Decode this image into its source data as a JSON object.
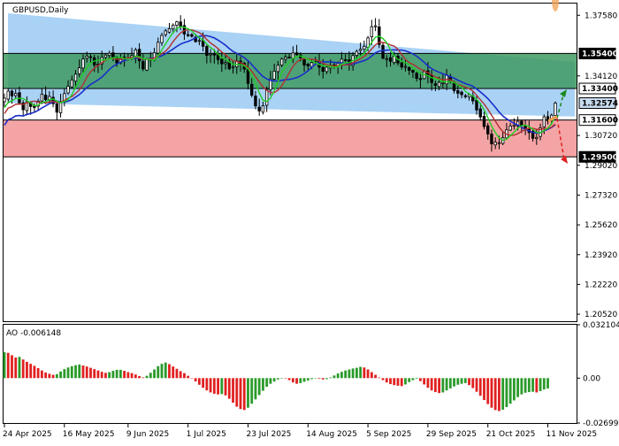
{
  "window": {
    "title": "GBPUSD,Daily"
  },
  "colors": {
    "channel": "#a9d2f5",
    "resistance_zone": "#3f9a62",
    "support_zone": "#f39a9a",
    "candle": "#000000",
    "ma_fast": "#22cc22",
    "ma_mid": "#b03030",
    "ma_slow": "#1a2ec8",
    "ao_up": "#2a9a2a",
    "ao_down": "#e02020",
    "arrow_up": "#1a8a1a",
    "arrow_down": "#e02020",
    "marker": "#f0a050"
  },
  "chart_data": [
    {
      "type": "candlestick",
      "title": "GBPUSD,Daily",
      "ylim": [
        1.2012,
        1.3825
      ],
      "y_ticks": [
        1.3758,
        1.3412,
        1.3072,
        1.2902,
        1.2732,
        1.2562,
        1.2392,
        1.2222,
        1.2052
      ],
      "y_tick_labels": [
        "1.37580",
        "1.34120",
        "1.30720",
        "1.29020",
        "1.27320",
        "1.25620",
        "1.23920",
        "1.22220",
        "1.20520"
      ],
      "x_labels": [
        "24 Apr 2025",
        "16 May 2025",
        "9 Jun 2025",
        "1 Jul 2025",
        "23 Jul 2025",
        "14 Aug 2025",
        "5 Sep 2025",
        "29 Sep 2025",
        "21 Oct 2025",
        "11 Nov 2025"
      ],
      "x_label_index": [
        0,
        16,
        33,
        49,
        65,
        81,
        97,
        113,
        129,
        145
      ],
      "levels": [
        {
          "value": 1.354,
          "label": "1.35400"
        },
        {
          "value": 1.334,
          "label": "1.33400"
        },
        {
          "value": 1.3257,
          "label": "1.32574"
        },
        {
          "value": 1.316,
          "label": "1.31600"
        },
        {
          "value": 1.295,
          "label": "1.29500"
        }
      ],
      "current_price": 1.3257,
      "closes": [
        1.3285,
        1.3325,
        1.3298,
        1.3312,
        1.3258,
        1.3219,
        1.3265,
        1.3237,
        1.3232,
        1.3268,
        1.3308,
        1.3276,
        1.3295,
        1.3254,
        1.3205,
        1.3265,
        1.3311,
        1.3353,
        1.3389,
        1.3422,
        1.3458,
        1.3508,
        1.3525,
        1.3521,
        1.3474,
        1.3475,
        1.3517,
        1.3531,
        1.3541,
        1.3513,
        1.3485,
        1.3512,
        1.3508,
        1.3514,
        1.3528,
        1.3561,
        1.3498,
        1.3452,
        1.3506,
        1.3507,
        1.3545,
        1.3604,
        1.3643,
        1.3669,
        1.3681,
        1.3702,
        1.3721,
        1.3693,
        1.3651,
        1.3642,
        1.3638,
        1.3608,
        1.3614,
        1.3581,
        1.3529,
        1.3537,
        1.3531,
        1.3505,
        1.3481,
        1.3488,
        1.3453,
        1.3465,
        1.3497,
        1.3481,
        1.3451,
        1.3369,
        1.3302,
        1.3241,
        1.3212,
        1.3242,
        1.3336,
        1.3395,
        1.3439,
        1.3473,
        1.3508,
        1.3519,
        1.3518,
        1.3543,
        1.3533,
        1.3516,
        1.3474,
        1.3469,
        1.3488,
        1.3494,
        1.3462,
        1.3438,
        1.3462,
        1.3468,
        1.3473,
        1.3484,
        1.3508,
        1.3501,
        1.3474,
        1.3528,
        1.3552,
        1.3564,
        1.3581,
        1.3629,
        1.3693,
        1.3698,
        1.3591,
        1.3513,
        1.3511,
        1.3495,
        1.3525,
        1.3486,
        1.3463,
        1.3466,
        1.3444,
        1.3433,
        1.3398,
        1.3391,
        1.3436,
        1.3412,
        1.3374,
        1.3358,
        1.3375,
        1.3372,
        1.3416,
        1.3379,
        1.3328,
        1.3313,
        1.3305,
        1.3294,
        1.3305,
        1.3269,
        1.3218,
        1.3178,
        1.3123,
        1.3081,
        1.3024,
        1.3034,
        1.3031,
        1.3059,
        1.3104,
        1.3126,
        1.3132,
        1.3153,
        1.3127,
        1.3114,
        1.3089,
        1.3056,
        1.3061,
        1.3116,
        1.3179,
        1.3156,
        1.3188,
        1.3257
      ]
    },
    {
      "type": "bar",
      "title": "AO -0.006148",
      "ylim": [
        -0.026999,
        0.032104
      ],
      "y_ticks": [
        0.032104,
        0.0,
        -0.026999
      ],
      "y_tick_labels": [
        "0.032104",
        "0.00",
        "-0.026999"
      ],
      "values": [
        0.0156,
        0.0152,
        0.0138,
        0.0124,
        0.0128,
        0.0112,
        0.0098,
        0.0086,
        0.0074,
        0.006,
        0.0046,
        0.0034,
        0.0026,
        0.002,
        0.0024,
        0.004,
        0.0054,
        0.0064,
        0.0072,
        0.0078,
        0.0082,
        0.0076,
        0.007,
        0.0062,
        0.0054,
        0.0046,
        0.0038,
        0.0032,
        0.0036,
        0.0044,
        0.005,
        0.005,
        0.0044,
        0.0036,
        0.003,
        0.0022,
        0.0012,
        0.0004,
        0.0014,
        0.0032,
        0.0052,
        0.0072,
        0.0086,
        0.0094,
        0.0084,
        0.007,
        0.0056,
        0.0042,
        0.003,
        0.0014,
        -0.0002,
        -0.002,
        -0.004,
        -0.0058,
        -0.0074,
        -0.0086,
        -0.0094,
        -0.0098,
        -0.0096,
        -0.0104,
        -0.0124,
        -0.0148,
        -0.0172,
        -0.0186,
        -0.0192,
        -0.0178,
        -0.0154,
        -0.0128,
        -0.0102,
        -0.0076,
        -0.0052,
        -0.0034,
        -0.002,
        -0.0008,
        0.0,
        -0.0002,
        -0.0012,
        -0.0026,
        -0.0034,
        -0.003,
        -0.0022,
        -0.0014,
        -0.0006,
        -0.0002,
        -0.0004,
        -0.0008,
        -0.0006,
        0.0004,
        0.0016,
        0.0028,
        0.0038,
        0.0046,
        0.0052,
        0.0058,
        0.0062,
        0.0068,
        0.0064,
        0.0052,
        0.0036,
        0.002,
        0.0004,
        -0.0012,
        -0.0026,
        -0.0036,
        -0.0042,
        -0.0046,
        -0.0048,
        -0.0038,
        -0.0024,
        -0.0012,
        -0.0004,
        -0.0018,
        -0.0038,
        -0.0058,
        -0.0074,
        -0.0084,
        -0.009,
        -0.0086,
        -0.0074,
        -0.0062,
        -0.005,
        -0.004,
        -0.0034,
        -0.003,
        -0.0042,
        -0.006,
        -0.0082,
        -0.0106,
        -0.0132,
        -0.0156,
        -0.0178,
        -0.0192,
        -0.0198,
        -0.019,
        -0.0174,
        -0.0154,
        -0.0134,
        -0.0114,
        -0.0098,
        -0.0088,
        -0.0084,
        -0.0082,
        -0.0086,
        -0.0078,
        -0.0068,
        -0.0062
      ]
    }
  ]
}
